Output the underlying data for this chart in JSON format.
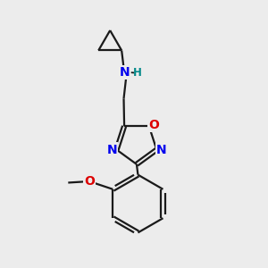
{
  "background_color": "#ececec",
  "bond_color": "#1a1a1a",
  "N_color": "#0000ee",
  "O_color": "#dd0000",
  "H_color": "#008888",
  "line_width": 1.6,
  "figsize": [
    3.0,
    3.0
  ],
  "dpi": 100,
  "xlim": [
    0,
    10
  ],
  "ylim": [
    0,
    10
  ],
  "font_size_heavy": 10,
  "font_size_H": 8.5,
  "dbl_off": 0.1
}
